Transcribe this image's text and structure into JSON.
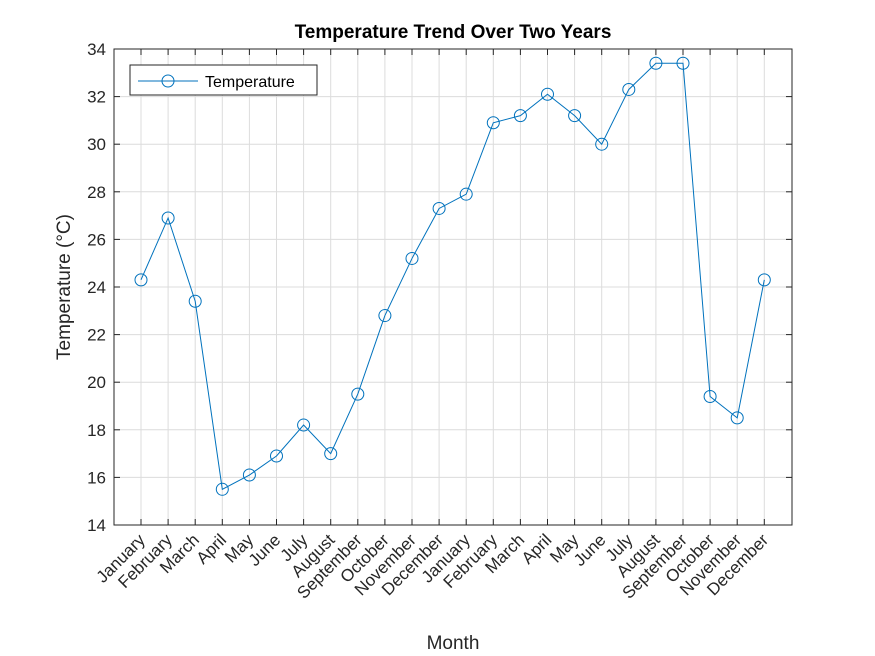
{
  "chart_data": {
    "type": "line",
    "title": "Temperature Trend Over Two Years",
    "xlabel": "Month",
    "ylabel": "Temperature (°C)",
    "categories": [
      "January",
      "February",
      "March",
      "April",
      "May",
      "June",
      "July",
      "August",
      "September",
      "October",
      "November",
      "December",
      "January",
      "February",
      "March",
      "April",
      "May",
      "June",
      "July",
      "August",
      "September",
      "October",
      "November",
      "December"
    ],
    "series": [
      {
        "name": "Temperature",
        "color": "#0072BD",
        "marker": "circle",
        "values": [
          24.3,
          26.9,
          23.4,
          15.5,
          16.1,
          16.9,
          18.2,
          17.0,
          19.5,
          22.8,
          25.2,
          27.3,
          27.9,
          30.9,
          31.2,
          32.1,
          31.2,
          30.0,
          32.3,
          33.4,
          33.4,
          19.4,
          18.5,
          24.3
        ]
      }
    ],
    "ylim": [
      14,
      34
    ],
    "yticks": [
      14,
      16,
      18,
      20,
      22,
      24,
      26,
      28,
      30,
      32,
      34
    ],
    "grid": true,
    "legend_position": "top-left"
  }
}
